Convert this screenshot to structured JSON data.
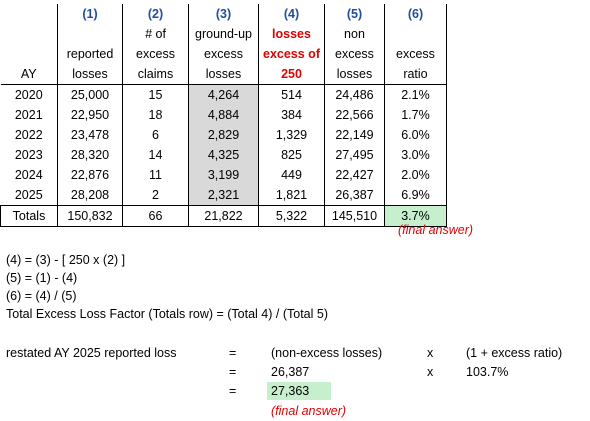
{
  "table": {
    "col_numbers": [
      "(1)",
      "(2)",
      "(3)",
      "(4)",
      "(5)",
      "(6)"
    ],
    "headers": {
      "ay": "AY",
      "reported": [
        "",
        "reported",
        "losses"
      ],
      "claims": [
        "# of",
        "excess",
        "claims"
      ],
      "groundup": [
        "ground-up",
        "excess",
        "losses"
      ],
      "excess_losses": [
        "losses",
        "excess of",
        "250"
      ],
      "nonexcess": [
        "non",
        "excess",
        "losses"
      ],
      "ratio": [
        "",
        "excess",
        "ratio"
      ]
    },
    "rows": [
      {
        "ay": "2020",
        "reported": "25,000",
        "claims": "15",
        "groundup": "4,264",
        "excess": "514",
        "nonexcess": "24,486",
        "ratio": "2.1%"
      },
      {
        "ay": "2021",
        "reported": "22,950",
        "claims": "18",
        "groundup": "4,884",
        "excess": "384",
        "nonexcess": "22,566",
        "ratio": "1.7%"
      },
      {
        "ay": "2022",
        "reported": "23,478",
        "claims": "6",
        "groundup": "2,829",
        "excess": "1,329",
        "nonexcess": "22,149",
        "ratio": "6.0%"
      },
      {
        "ay": "2023",
        "reported": "28,320",
        "claims": "14",
        "groundup": "4,325",
        "excess": "825",
        "nonexcess": "27,495",
        "ratio": "3.0%"
      },
      {
        "ay": "2024",
        "reported": "22,876",
        "claims": "11",
        "groundup": "3,199",
        "excess": "449",
        "nonexcess": "22,427",
        "ratio": "2.0%"
      },
      {
        "ay": "2025",
        "reported": "28,208",
        "claims": "2",
        "groundup": "2,321",
        "excess": "1,821",
        "nonexcess": "26,387",
        "ratio": "6.9%"
      }
    ],
    "totals": {
      "label": "Totals",
      "reported": "150,832",
      "claims": "66",
      "groundup": "21,822",
      "excess": "5,322",
      "nonexcess": "145,510",
      "ratio": "3.7%"
    },
    "final_note": "(final answer)"
  },
  "formulas": [
    "(4) = (3) - [ 250 x (2) ]",
    "(5) = (1) - (4)",
    "(6) = (4) / (5)",
    "Total Excess Loss Factor (Totals row) = (Total 4) / (Total 5)"
  ],
  "restatement": {
    "label": "restated AY 2025 reported loss",
    "eq": "=",
    "line1": {
      "term": "(non-excess losses)",
      "op": "x",
      "factor": "(1 + excess ratio)"
    },
    "line2": {
      "term": "26,387",
      "op": "x",
      "factor": "103.7%"
    },
    "line3": {
      "result": "27,363"
    },
    "final_note": "(final answer)"
  },
  "colors": {
    "header_blue": "#1f4e9e",
    "red": "#e00000",
    "gray_fill": "#d9d9d9",
    "green_fill": "#c6efce"
  }
}
